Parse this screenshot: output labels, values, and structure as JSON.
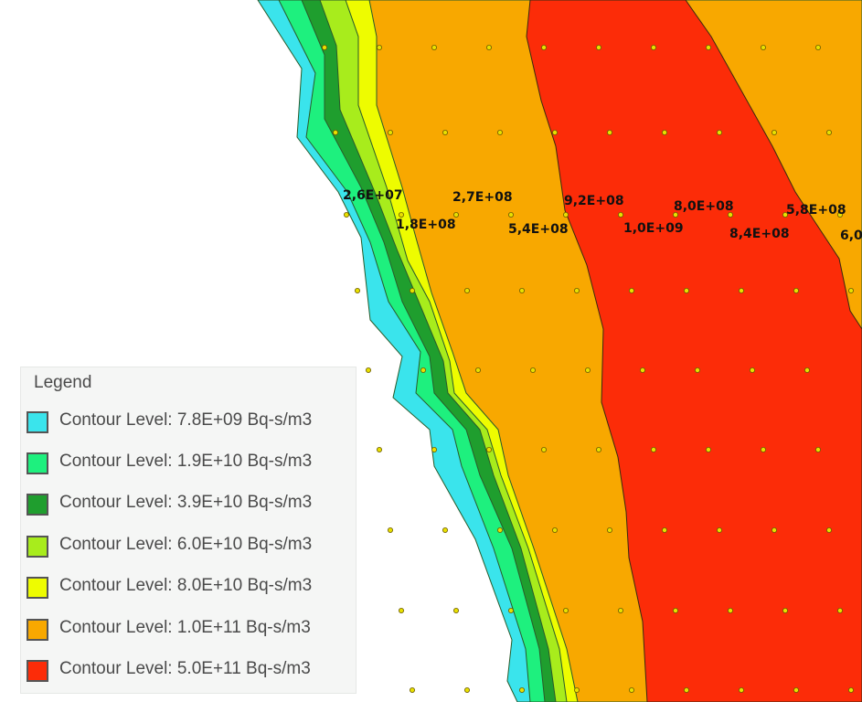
{
  "map": {
    "point_labels": [
      "2,6E+07",
      "2,7E+08",
      "9,2E+08",
      "8,0E+08",
      "5,8E+08",
      "1,8E+08",
      "5,4E+08",
      "1,0E+09",
      "8,4E+08",
      "6,0"
    ]
  },
  "legend": {
    "title": "Legend",
    "items": [
      {
        "label": "Contour Level: 7.8E+09 Bq-s/m3",
        "color": "#3ae4ec"
      },
      {
        "label": "Contour Level: 1.9E+10 Bq-s/m3",
        "color": "#1ef07e"
      },
      {
        "label": "Contour Level: 3.9E+10 Bq-s/m3",
        "color": "#1f9e2e"
      },
      {
        "label": "Contour Level: 6.0E+10 Bq-s/m3",
        "color": "#a8ec1c"
      },
      {
        "label": "Contour Level: 8.0E+10 Bq-s/m3",
        "color": "#eefc00"
      },
      {
        "label": "Contour Level: 1.0E+11 Bq-s/m3",
        "color": "#f8a800"
      },
      {
        "label": "Contour Level: 5.0E+11 Bq-s/m3",
        "color": "#fc2c08"
      }
    ]
  }
}
